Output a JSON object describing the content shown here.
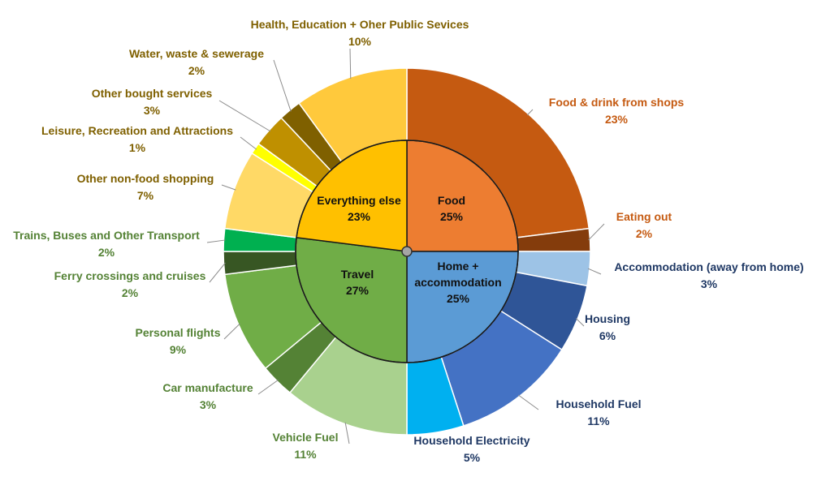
{
  "chart_data": {
    "type": "pie",
    "subtype": "sunburst",
    "title": "",
    "inner": [
      {
        "name": "Food",
        "value": 25,
        "label": "25%",
        "color": "#ED7D31"
      },
      {
        "name": "Home + accommodation",
        "value": 25,
        "label": "25%",
        "color": "#5B9BD5"
      },
      {
        "name": "Travel",
        "value": 27,
        "label": "27%",
        "color": "#70AD47"
      },
      {
        "name": "Everything else",
        "value": 23,
        "label": "23%",
        "color": "#FFC000"
      }
    ],
    "outer": [
      {
        "name": "Food & drink from shops",
        "value": 23,
        "label": "23%",
        "group": "Food",
        "color": "#C55A11",
        "text_color": "#C55A11"
      },
      {
        "name": "Eating out",
        "value": 2,
        "label": "2%",
        "group": "Food",
        "color": "#843C0C",
        "text_color": "#C55A11"
      },
      {
        "name": "Accommodation  (away from home)",
        "value": 3,
        "label": "3%",
        "group": "Home + accommodation",
        "color": "#9DC3E6",
        "text_color": "#1F3864"
      },
      {
        "name": "Housing",
        "value": 6,
        "label": "6%",
        "group": "Home + accommodation",
        "color": "#2F5597",
        "text_color": "#1F3864"
      },
      {
        "name": "Household Fuel",
        "value": 11,
        "label": "11%",
        "group": "Home + accommodation",
        "color": "#4472C4",
        "text_color": "#1F3864"
      },
      {
        "name": "Household Electricity",
        "value": 5,
        "label": "5%",
        "group": "Home + accommodation",
        "color": "#00B0F0",
        "text_color": "#1F3864"
      },
      {
        "name": "Vehicle Fuel",
        "value": 11,
        "label": "11%",
        "group": "Travel",
        "color": "#A9D18E",
        "text_color": "#548235"
      },
      {
        "name": "Car manufacture",
        "value": 3,
        "label": "3%",
        "group": "Travel",
        "color": "#548235",
        "text_color": "#548235"
      },
      {
        "name": "Personal flights",
        "value": 9,
        "label": "9%",
        "group": "Travel",
        "color": "#70AD47",
        "text_color": "#548235"
      },
      {
        "name": "Ferry crossings and cruises",
        "value": 2,
        "label": "2%",
        "group": "Travel",
        "color": "#375623",
        "text_color": "#548235"
      },
      {
        "name": "Trains, Buses and Other Transport",
        "value": 2,
        "label": "2%",
        "group": "Travel",
        "color": "#00B050",
        "text_color": "#548235"
      },
      {
        "name": "Other non-food shopping",
        "value": 7,
        "label": "7%",
        "group": "Everything else",
        "color": "#FFD966",
        "text_color": "#7F6000"
      },
      {
        "name": "Leisure, Recreation and Attractions",
        "value": 1,
        "label": "1%",
        "group": "Everything else",
        "color": "#FFFF00",
        "text_color": "#7F6000"
      },
      {
        "name": "Other bought services",
        "value": 3,
        "label": "3%",
        "group": "Everything else",
        "color": "#BF9000",
        "text_color": "#7F6000"
      },
      {
        "name": "Water, waste & sewerage",
        "value": 2,
        "label": "2%",
        "group": "Everything else",
        "color": "#7F6000",
        "text_color": "#7F6000"
      },
      {
        "name": "Health, Education + Oher Public Sevices",
        "value": 10,
        "label": "10%",
        "group": "Everything else",
        "color": "#FFC93C",
        "text_color": "#7F6000"
      }
    ],
    "inner_label_lines": {
      "Food": [
        "Food"
      ],
      "Home + accommodation": [
        "Home +",
        "accommodation"
      ],
      "Travel": [
        "Travel"
      ],
      "Everything else": [
        "Everything else"
      ]
    },
    "start_angle_deg": 0,
    "direction": "clockwise",
    "legend": "none"
  }
}
